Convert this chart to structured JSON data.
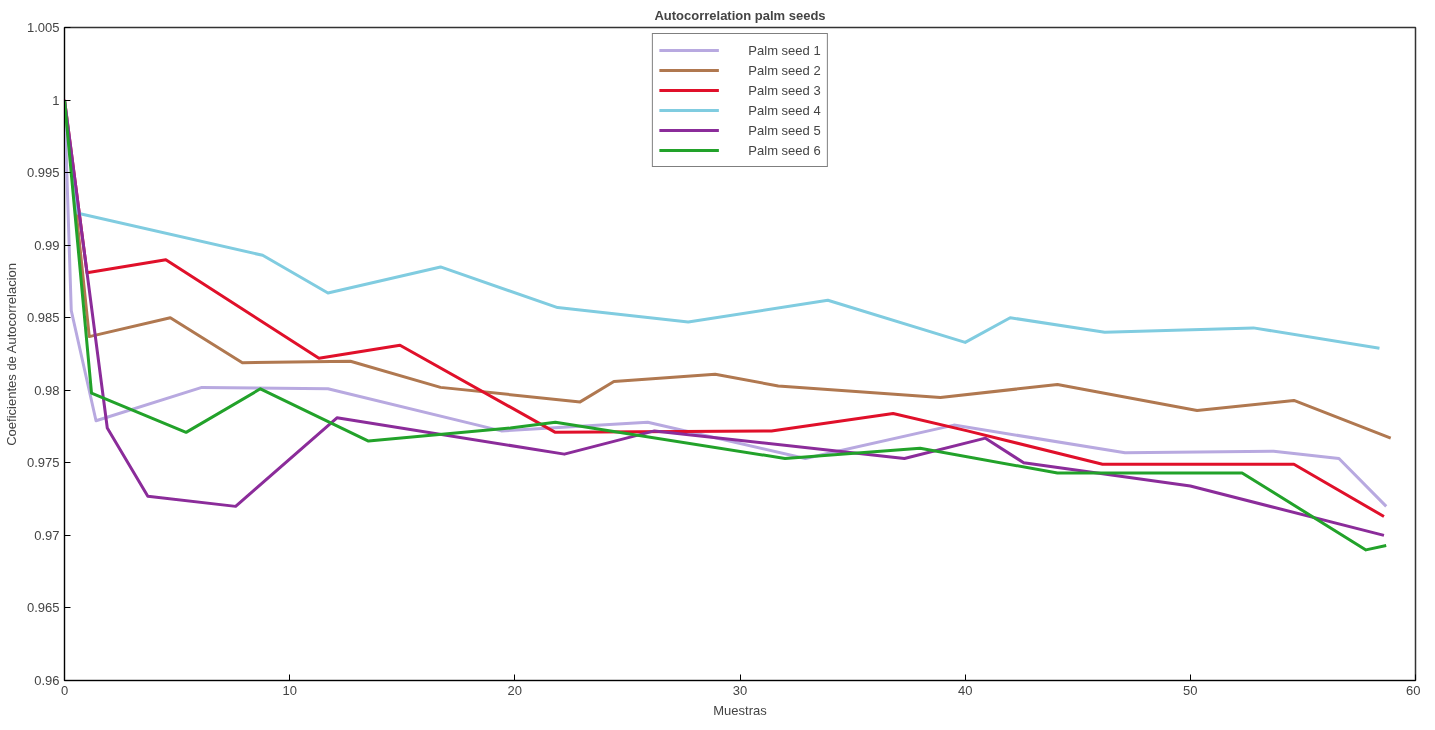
{
  "chart_data": {
    "type": "line",
    "title": "Autocorrelation palm seeds",
    "xlabel": "Muestras",
    "ylabel": "Coeficientes de Autocorrelacion",
    "xlim": [
      0,
      60
    ],
    "xticks": [
      0,
      10,
      20,
      30,
      40,
      50,
      60
    ],
    "ylim": [
      0.96,
      1.005
    ],
    "yticks": [
      0.96,
      0.965,
      0.97,
      0.975,
      0.98,
      0.985,
      0.99,
      0.995,
      1,
      1.005
    ],
    "grid": false,
    "legend": "top",
    "line_style": "solid",
    "marker": "none",
    "series": [
      {
        "name": "Palm seed 1",
        "color": "#b8a9e0",
        "x": [
          0,
          0.3,
          1.4,
          6.1,
          11.7,
          19.4,
          25.9,
          32.9,
          39.5,
          47.1,
          53.7,
          56.6,
          58.7
        ],
        "values": [
          1.0,
          0.9855,
          0.9779,
          0.9802,
          0.9801,
          0.9772,
          0.9778,
          0.9753,
          0.9776,
          0.9757,
          0.9758,
          0.9753,
          0.972
        ]
      },
      {
        "name": "Palm seed 2",
        "color": "#b07850",
        "x": [
          0,
          1.1,
          4.7,
          7.9,
          12.7,
          16.7,
          22.9,
          24.4,
          28.9,
          31.7,
          38.9,
          44.1,
          50.3,
          54.6,
          58.9
        ],
        "values": [
          1.0,
          0.9837,
          0.985,
          0.9819,
          0.982,
          0.9802,
          0.9792,
          0.9806,
          0.9811,
          0.9803,
          0.9795,
          0.9804,
          0.9786,
          0.9793,
          0.9767
        ]
      },
      {
        "name": "Palm seed 3",
        "color": "#e0102a",
        "x": [
          0,
          1.0,
          4.5,
          11.3,
          14.9,
          21.8,
          31.4,
          36.8,
          40.1,
          46.1,
          54.6,
          58.6
        ],
        "values": [
          1.0,
          0.9881,
          0.989,
          0.9822,
          0.9831,
          0.9771,
          0.9772,
          0.9784,
          0.9772,
          0.9749,
          0.9749,
          0.9713
        ]
      },
      {
        "name": "Palm seed 4",
        "color": "#80cce0",
        "x": [
          0,
          0.6,
          8.8,
          11.7,
          16.7,
          21.9,
          27.7,
          33.9,
          40.0,
          42.0,
          46.2,
          52.8,
          58.4
        ],
        "values": [
          1.0,
          0.9922,
          0.9893,
          0.9867,
          0.9885,
          0.9857,
          0.9847,
          0.9862,
          0.9833,
          0.985,
          0.984,
          0.9843,
          0.9829
        ]
      },
      {
        "name": "Palm seed 5",
        "color": "#8b2c9a",
        "x": [
          0,
          1.9,
          3.7,
          7.6,
          12.1,
          22.2,
          26.2,
          37.3,
          40.9,
          42.6,
          50.0,
          58.6
        ],
        "values": [
          1.0,
          0.9774,
          0.9727,
          0.972,
          0.9781,
          0.9756,
          0.9772,
          0.9753,
          0.9767,
          0.975,
          0.9734,
          0.97
        ]
      },
      {
        "name": "Palm seed 6",
        "color": "#22a22a",
        "x": [
          0,
          1.2,
          5.4,
          8.7,
          13.5,
          19.8,
          21.8,
          32.0,
          38.0,
          44.1,
          52.3,
          57.8,
          58.7
        ],
        "values": [
          1.0,
          0.9798,
          0.9771,
          0.9801,
          0.9765,
          0.9774,
          0.9778,
          0.9753,
          0.976,
          0.9743,
          0.9743,
          0.969,
          0.9693
        ]
      }
    ]
  }
}
